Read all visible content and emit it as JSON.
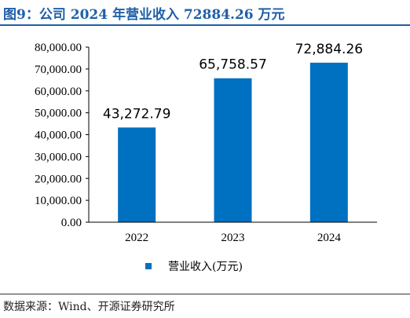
{
  "header": {
    "title": "图9：公司 2024 年营业收入 72884.26 万元"
  },
  "footer": {
    "source": "数据来源：Wind、开源证券研究所"
  },
  "colors": {
    "accent": "#1f5fa8",
    "bar": "#0070c0"
  },
  "chart_data": {
    "type": "bar",
    "categories": [
      "2022",
      "2023",
      "2024"
    ],
    "series": [
      {
        "name": "营业收入(万元)",
        "values": [
          43272.79,
          65758.57,
          72884.26
        ],
        "labels": [
          "43,272.79",
          "65,758.57",
          "72,884.26"
        ]
      }
    ],
    "ylim": [
      0,
      80000
    ],
    "yticks": [
      0,
      10000,
      20000,
      30000,
      40000,
      50000,
      60000,
      70000,
      80000
    ],
    "ytick_labels": [
      "0.00",
      "10,000.00",
      "20,000.00",
      "30,000.00",
      "40,000.00",
      "50,000.00",
      "60,000.00",
      "70,000.00",
      "80,000.00"
    ],
    "title": "",
    "xlabel": "",
    "ylabel": "",
    "grid": false,
    "legend": "bottom-center"
  }
}
